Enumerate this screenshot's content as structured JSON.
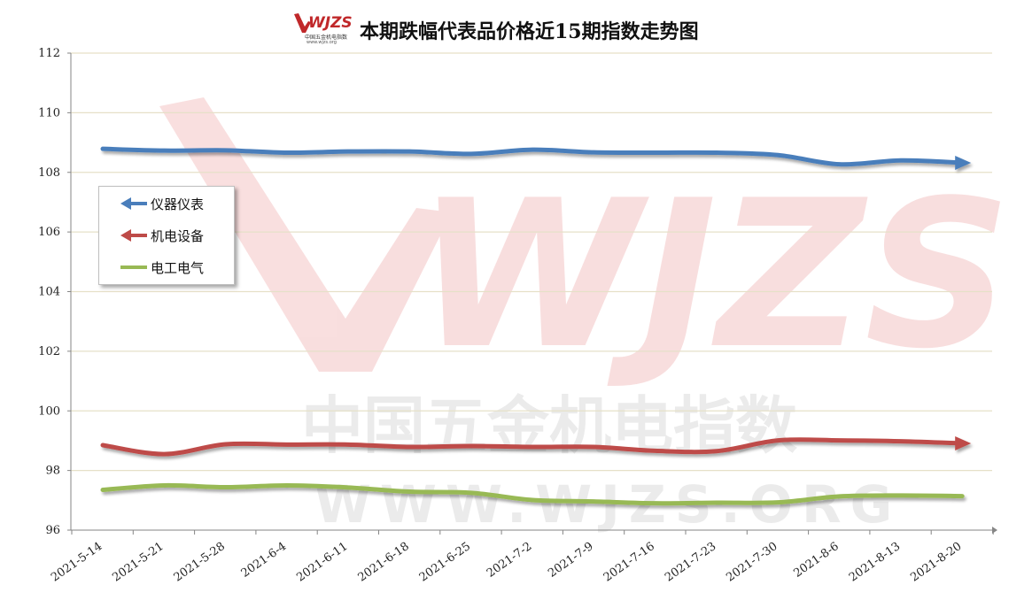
{
  "header": {
    "logo_text": "WJZS",
    "logo_subtitle": "中国五金机电指数",
    "logo_url": "www.wjzs.org",
    "title": "本期跌幅代表品价格近15期指数走势图"
  },
  "watermark": {
    "logo_text": "WJZS",
    "cn_text": "中国五金机电指数",
    "url_text": "WWW.WJZS.ORG"
  },
  "colors": {
    "series_1": "#4a7ebb",
    "series_2": "#be4b48",
    "series_3": "#98b954",
    "grid": "#e6e0c8",
    "axis": "#868686",
    "watermark": "#d93a3a"
  },
  "legend": {
    "position": "left",
    "items": [
      {
        "label": "仪器仪表",
        "marker": "arrow-left",
        "color": "#4a7ebb"
      },
      {
        "label": "机电设备",
        "marker": "arrow-left",
        "color": "#be4b48"
      },
      {
        "label": "电工电气",
        "marker": "line",
        "color": "#98b954"
      }
    ]
  },
  "chart_data": {
    "type": "line",
    "title": "本期跌幅代表品价格近15期指数走势图",
    "xlabel": "",
    "ylabel": "",
    "ylim": [
      96,
      112
    ],
    "yticks": [
      "96",
      "98",
      "100",
      "102",
      "104",
      "106",
      "108",
      "110",
      "112"
    ],
    "grid": true,
    "categories": [
      "2021-5-14",
      "2021-5-21",
      "2021-5-28",
      "2021-6-4",
      "2021-6-11",
      "2021-6-18",
      "2021-6-25",
      "2021-7-2",
      "2021-7-9",
      "2021-7-16",
      "2021-7-23",
      "2021-7-30",
      "2021-8-6",
      "2021-8-13",
      "2021-8-20"
    ],
    "series": [
      {
        "name": "仪器仪表",
        "color": "#4a7ebb",
        "end_marker": "arrow",
        "values": [
          108.79,
          108.73,
          108.74,
          108.66,
          108.7,
          108.7,
          108.62,
          108.76,
          108.67,
          108.66,
          108.66,
          108.58,
          108.27,
          108.4,
          108.32
        ]
      },
      {
        "name": "机电设备",
        "color": "#be4b48",
        "end_marker": "arrow",
        "values": [
          98.85,
          98.55,
          98.88,
          98.87,
          98.87,
          98.79,
          98.82,
          98.79,
          98.79,
          98.66,
          98.65,
          99.01,
          99.01,
          98.98,
          98.91
        ]
      },
      {
        "name": "电工电气",
        "color": "#98b954",
        "end_marker": "none",
        "values": [
          97.35,
          97.5,
          97.44,
          97.5,
          97.43,
          97.29,
          97.25,
          97.01,
          96.96,
          96.9,
          96.92,
          96.93,
          97.13,
          97.16,
          97.14
        ]
      }
    ]
  }
}
